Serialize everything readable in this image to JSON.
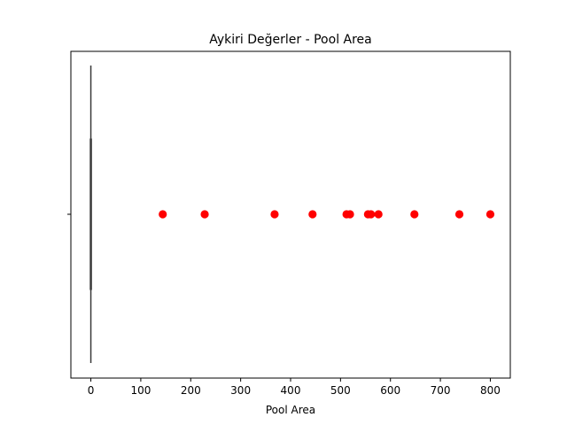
{
  "chart_data": {
    "type": "boxplot",
    "title": "Aykiri Değerler - Pool Area",
    "xlabel": "Pool Area",
    "ylabel": "",
    "xlim": [
      -40,
      840
    ],
    "xticks": [
      0,
      100,
      200,
      300,
      400,
      500,
      600,
      700,
      800
    ],
    "box": {
      "q1": 0,
      "median": 0,
      "q3": 0,
      "whisker_low": 0,
      "whisker_high": 0
    },
    "outliers": [
      144,
      228,
      368,
      444,
      512,
      519,
      555,
      561,
      576,
      648,
      738,
      800
    ],
    "colors": {
      "outlier": "#ff0000",
      "box": "#3a3a3a",
      "axes": "#000000"
    },
    "grid": false
  }
}
